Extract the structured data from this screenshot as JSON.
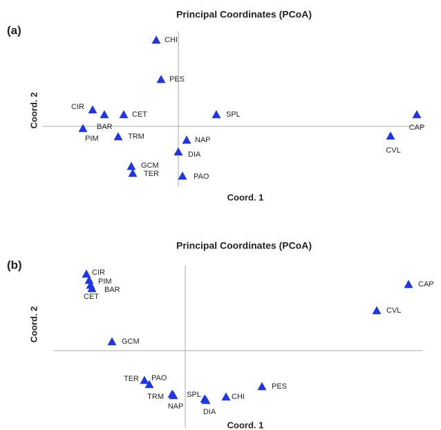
{
  "chart_data": [
    {
      "type": "scatter",
      "panel_label": "(a)",
      "title": "Principal Coordinates (PCoA)",
      "xlabel": "Coord. 1",
      "ylabel": "Coord. 2",
      "color": "#1f35e6",
      "labels": [
        "CHI",
        "PES",
        "CIR",
        "BAR",
        "CET",
        "SPL",
        "CAP",
        "PIM",
        "TRM",
        "NAP",
        "CVL",
        "DIA",
        "GCM",
        "TER",
        "PAO"
      ],
      "x": [
        -0.32,
        -0.25,
        -1.24,
        -1.07,
        -0.79,
        0.55,
        3.45,
        -1.38,
        -0.87,
        0.12,
        3.07,
        0.0,
        -0.68,
        -0.66,
        0.06
      ],
      "y": [
        1.25,
        0.68,
        0.24,
        0.17,
        0.17,
        0.17,
        0.17,
        -0.03,
        -0.15,
        -0.2,
        -0.14,
        -0.37,
        -0.58,
        -0.68,
        -0.72
      ],
      "xlim": [
        -1.96,
        3.54
      ],
      "ylim": [
        -0.87,
        1.38
      ]
    },
    {
      "type": "scatter",
      "panel_label": "(b)",
      "title": "Principal Coordinates (PCoA)",
      "xlabel": "Coord. 1",
      "ylabel": "Coord. 2",
      "color": "#1f35e6",
      "labels": [
        "CIR",
        "PIM",
        "BAR",
        "CET",
        "CAP",
        "CVL",
        "GCM",
        "TER",
        "PAO",
        "TRM",
        "NAP",
        "SPL",
        "DIA",
        "CHI",
        "PES"
      ],
      "x": [
        -1.43,
        -1.39,
        -1.37,
        -1.35,
        3.23,
        2.77,
        -1.06,
        -0.59,
        -0.52,
        -0.19,
        -0.17,
        0.28,
        0.3,
        0.59,
        1.11
      ],
      "y": [
        1.11,
        1.02,
        0.95,
        0.9,
        0.96,
        0.58,
        0.13,
        -0.43,
        -0.49,
        -0.63,
        -0.65,
        -0.7,
        -0.72,
        -0.67,
        -0.52
      ],
      "xlim": [
        -1.9,
        3.44
      ],
      "ylim": [
        -1.12,
        1.23
      ]
    }
  ]
}
